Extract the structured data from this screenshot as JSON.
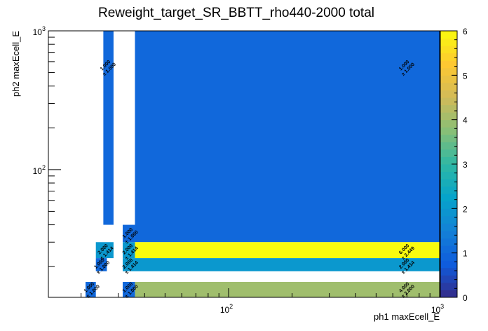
{
  "chart_data": {
    "type": "heatmap",
    "title": "Reweight_target_SR_BBTT_rho440-2000 total",
    "xlabel": "ph1 maxEcell_E",
    "ylabel": "ph2 maxEcell_E",
    "xscale": "log",
    "yscale": "log",
    "xlim": [
      14,
      1000
    ],
    "ylim": [
      12,
      1000
    ],
    "zlim": [
      0,
      6
    ],
    "x_ticks": [
      {
        "value": 100,
        "mant": "10",
        "exp": "2"
      },
      {
        "value": 1000,
        "mant": "10",
        "exp": "3"
      }
    ],
    "y_ticks": [
      {
        "value": 100,
        "mant": "10",
        "exp": "2"
      },
      {
        "value": 1000,
        "mant": "10",
        "exp": "3"
      }
    ],
    "z_ticks": [
      "0",
      "1",
      "2",
      "3",
      "4",
      "5",
      "6"
    ],
    "palette": [
      "#352a87",
      "#0f5cdd",
      "#1481d6",
      "#06a4ca",
      "#2eb7a4",
      "#87bf77",
      "#d1bb59",
      "#fec832",
      "#f9fb0e"
    ],
    "cells": [
      {
        "x0": 25.5,
        "x1": 28.5,
        "y0": 40,
        "y1": 1000,
        "value": 1.0,
        "error": 1.0,
        "label": "1.000",
        "err_label": "± 1.000",
        "lx": 26.5,
        "ly": 550
      },
      {
        "x0": 36,
        "x1": 1000,
        "y0": 30,
        "y1": 1000,
        "value": 1.0,
        "error": 1.0,
        "label": "1.000",
        "err_label": "± 1.000",
        "lx": 690,
        "ly": 550
      },
      {
        "x0": 31.5,
        "x1": 36,
        "y0": 30,
        "y1": 40,
        "value": 1.0,
        "error": 1.0,
        "label": "1.000",
        "err_label": "± 1.000",
        "lx": 33.8,
        "ly": 34
      },
      {
        "x0": 23.5,
        "x1": 28.5,
        "y0": 23,
        "y1": 30,
        "value": 2.0,
        "error": 1.414,
        "label": "2.000",
        "err_label": "± 1.414",
        "lx": 25.8,
        "ly": 26
      },
      {
        "x0": 31.5,
        "x1": 36,
        "y0": 23,
        "y1": 30,
        "value": 2.0,
        "error": 1.414,
        "label": "2.000",
        "err_label": "± 1.414",
        "lx": 33.8,
        "ly": 26
      },
      {
        "x0": 36,
        "x1": 1000,
        "y0": 23,
        "y1": 30,
        "value": 6.0,
        "error": 2.449,
        "label": "6.000",
        "err_label": "± 2.449",
        "lx": 690,
        "ly": 26
      },
      {
        "x0": 23.5,
        "x1": 26.5,
        "y0": 18.5,
        "y1": 23,
        "value": 1.0,
        "error": 1.0,
        "label": "1.000",
        "err_label": "± 1.000",
        "lx": 24.8,
        "ly": 20.5
      },
      {
        "x0": 31.5,
        "x1": 36,
        "y0": 18.5,
        "y1": 23,
        "value": 2.0,
        "error": 1.414,
        "label": "2.000",
        "err_label": "± 1.414",
        "lx": 33.8,
        "ly": 20.5
      },
      {
        "x0": 36,
        "x1": 1000,
        "y0": 18.5,
        "y1": 23,
        "value": 2.0,
        "error": 1.414,
        "label": "2.000",
        "err_label": "± 1.414",
        "lx": 690,
        "ly": 20.5
      },
      {
        "x0": 21,
        "x1": 23.5,
        "y0": 12,
        "y1": 15.5,
        "value": 1.0,
        "error": 1.0,
        "label": "1.000",
        "err_label": "± 1.000",
        "lx": 22.2,
        "ly": 13.8
      },
      {
        "x0": 31.5,
        "x1": 36,
        "y0": 12,
        "y1": 15.5,
        "value": 1.0,
        "error": 1.0,
        "label": "1.000",
        "err_label": "± 1.000",
        "lx": 33.8,
        "ly": 13.8
      },
      {
        "x0": 36,
        "x1": 1000,
        "y0": 12,
        "y1": 15.5,
        "value": 4.0,
        "error": 2.0,
        "label": "4.000",
        "err_label": "± 2.000",
        "lx": 690,
        "ly": 13.8
      }
    ]
  }
}
